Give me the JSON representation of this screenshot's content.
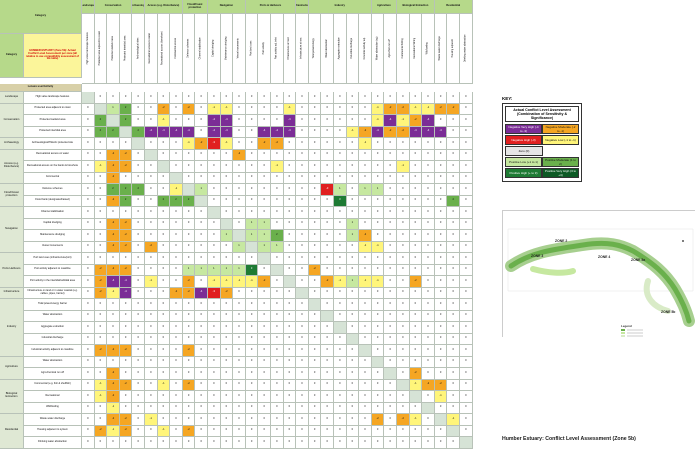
{
  "header": {
    "category_label": "Category",
    "top_categories": [
      "Landscape",
      "Conservation",
      "Archaeology",
      "Access (e.g. Disturbance)",
      "Flood/Coast protection",
      "Navigation",
      "Ports & Harbours",
      "Infrastructure",
      "Industry",
      "Agriculture",
      "Biological Extraction",
      "Residential"
    ],
    "intro": "HUMBER ESTUARY (Zone 5b): Actual Conflict Level Assessment per zone (all relative to use compatibility assessment of the table)"
  },
  "key": {
    "label": "KEY:",
    "heading": "Actual Conflict Level Assessment (Combination of Sensitivity & Significance)",
    "items": [
      {
        "label": "Negative Very High (-4 to -3)",
        "color": "#7b2d96"
      },
      {
        "label": "Negative High (-3)",
        "color": "#e02020"
      },
      {
        "label": "Negative Moderate (-2 to -1)",
        "color": "#f5a623"
      },
      {
        "label": "Negative Low (-1 to -1)",
        "color": "#fff57a"
      },
      {
        "label": "Zero (0)",
        "color": "#e6e6e6"
      },
      {
        "label": "Positive Low (+1 to 1)",
        "color": "#c6e8a0"
      },
      {
        "label": "Positive Moderate (1 to 2)",
        "color": "#6ab04c"
      },
      {
        "label": "Positive High (+ to 3)",
        "color": "#1e7b34"
      },
      {
        "label": "Positive Very High (3 to +4)",
        "color": "#0d5a25"
      }
    ]
  },
  "map": {
    "zone_labels": [
      "ZONE 2",
      "ZONE 3",
      "ZONE 4",
      "ZONE 5a",
      "ZONE 5b"
    ],
    "legend_title": "Legend"
  },
  "footer_title": "Humber Estuary:  Conflict Level Assessment (Zone 5b)",
  "matrix": {
    "subheader_label": "Leisure user/Activity",
    "column_headers": [
      "High value landscape features",
      "Protected area adjacent to coast",
      "Protected wetland area",
      "Protected intertidal area",
      "Archaeological sites",
      "Recreational access to water",
      "Recreational access (foreshore)",
      "Commercial access",
      "Defence schemes",
      "Channel stabilisation",
      "Capital dredging",
      "Maintenance dredging",
      "Vessel movements",
      "Port land uses",
      "Port activity",
      "Port activity adj. inlet",
      "Infrastructure on land",
      "Infrastructure at sea",
      "Tidal power/energy",
      "Water abstraction",
      "Aggregate extraction",
      "Industrial discharge",
      "Industrial activity adj.",
      "Water abstraction (ag)",
      "Agri-chem run-off",
      "Commercial fishing",
      "Recreational fishing",
      "Wildfowling",
      "Waste water discharge",
      "Housing adjacent",
      "Drinking water abstraction"
    ],
    "rows": [
      {
        "cat": "Landscape",
        "sub": "High value landscape features",
        "cells": [
          null,
          0,
          0,
          0,
          0,
          0,
          0,
          0,
          0,
          0,
          0,
          0,
          0,
          0,
          0,
          0,
          0,
          0,
          0,
          0,
          0,
          0,
          0,
          0,
          0,
          0,
          0,
          0,
          0,
          0,
          0
        ]
      },
      {
        "cat": "Conservation",
        "sub": "Protected area adjacent to coast",
        "cells": [
          0,
          null,
          1,
          2,
          0,
          0,
          -2,
          0,
          -2,
          0,
          -1,
          -1,
          0,
          0,
          0,
          0,
          -1,
          0,
          0,
          0,
          0,
          0,
          0,
          -1,
          -2,
          -2,
          -1,
          -1,
          -2,
          -2,
          0
        ]
      },
      {
        "cat": "",
        "sub": "Protected wetland area",
        "cells": [
          0,
          2,
          null,
          2,
          0,
          0,
          -1,
          0,
          0,
          0,
          -4,
          -4,
          0,
          0,
          0,
          0,
          -4,
          0,
          0,
          0,
          0,
          0,
          0,
          -1,
          -4,
          -1,
          -2,
          -4,
          0,
          0,
          0
        ]
      },
      {
        "cat": "",
        "sub": "Protected intertidal area",
        "cells": [
          0,
          2,
          2,
          null,
          2,
          -4,
          -4,
          -4,
          -4,
          0,
          -4,
          -4,
          0,
          0,
          -4,
          -4,
          -4,
          0,
          0,
          0,
          0,
          -1,
          -2,
          -4,
          -2,
          -2,
          -4,
          -4,
          -4,
          0,
          0
        ]
      },
      {
        "cat": "Archaeology",
        "sub": "Archaeological/Historic protected site",
        "cells": [
          0,
          0,
          0,
          0,
          null,
          0,
          0,
          0,
          -1,
          -2,
          -3,
          -1,
          0,
          0,
          -2,
          -2,
          0,
          0,
          0,
          0,
          0,
          0,
          -1,
          0,
          0,
          0,
          0,
          0,
          0,
          0,
          0
        ]
      },
      {
        "cat": "Access (e.g. Disturbance)",
        "sub": "Recreational access on water",
        "cells": [
          0,
          0,
          -2,
          -2,
          0,
          null,
          0,
          0,
          0,
          0,
          0,
          0,
          -2,
          0,
          0,
          0,
          0,
          0,
          0,
          0,
          0,
          0,
          0,
          0,
          0,
          0,
          0,
          0,
          0,
          0,
          0
        ]
      },
      {
        "cat": "",
        "sub": "Recreational access on the banks & foreshore",
        "cells": [
          0,
          -1,
          -2,
          -2,
          0,
          0,
          null,
          0,
          0,
          0,
          0,
          0,
          0,
          0,
          0,
          -1,
          0,
          0,
          0,
          0,
          0,
          0,
          0,
          0,
          0,
          -1,
          0,
          0,
          0,
          0,
          0
        ]
      },
      {
        "cat": "",
        "sub": "Commercial",
        "cells": [
          0,
          0,
          -2,
          0,
          0,
          0,
          0,
          null,
          0,
          0,
          0,
          0,
          0,
          0,
          0,
          0,
          0,
          0,
          0,
          0,
          0,
          0,
          0,
          0,
          0,
          0,
          0,
          0,
          0,
          0,
          0
        ]
      },
      {
        "cat": "Flood/Coast protection",
        "sub": "Defence schemes",
        "cells": [
          0,
          0,
          2,
          2,
          2,
          0,
          0,
          -1,
          null,
          1,
          0,
          0,
          0,
          0,
          0,
          0,
          0,
          0,
          0,
          -3,
          1,
          0,
          1,
          1,
          0,
          0,
          0,
          0,
          0,
          0,
          0
        ]
      },
      {
        "cat": "",
        "sub": "Flood bank (designated/raised)",
        "cells": [
          0,
          0,
          -2,
          2,
          0,
          0,
          2,
          2,
          2,
          null,
          0,
          0,
          0,
          0,
          0,
          0,
          0,
          0,
          0,
          0,
          3,
          0,
          0,
          0,
          0,
          0,
          0,
          0,
          0,
          2,
          0
        ]
      },
      {
        "cat": "Navigation",
        "sub": "Channel stabilisation",
        "cells": [
          0,
          0,
          0,
          0,
          0,
          0,
          0,
          0,
          0,
          0,
          null,
          0,
          0,
          0,
          0,
          0,
          0,
          0,
          0,
          0,
          0,
          0,
          0,
          0,
          0,
          0,
          0,
          0,
          0,
          0,
          0
        ]
      },
      {
        "cat": "",
        "sub": "Capital dredging",
        "cells": [
          0,
          0,
          -2,
          -2,
          0,
          0,
          0,
          0,
          0,
          0,
          0,
          null,
          0,
          1,
          1,
          0,
          0,
          0,
          0,
          0,
          0,
          1,
          0,
          0,
          0,
          0,
          0,
          0,
          0,
          0,
          0
        ]
      },
      {
        "cat": "",
        "sub": "Maintenance dredging",
        "cells": [
          0,
          0,
          -2,
          -2,
          0,
          0,
          0,
          0,
          0,
          0,
          0,
          1,
          null,
          1,
          1,
          2,
          0,
          0,
          0,
          0,
          0,
          1,
          -2,
          0,
          0,
          0,
          0,
          0,
          0,
          0,
          0
        ]
      },
      {
        "cat": "",
        "sub": "Vessel movements",
        "cells": [
          0,
          0,
          -2,
          -2,
          0,
          -2,
          0,
          0,
          0,
          0,
          0,
          0,
          1,
          null,
          1,
          1,
          0,
          0,
          0,
          0,
          0,
          0,
          -1,
          -1,
          0,
          0,
          0,
          0,
          0,
          0,
          0
        ]
      },
      {
        "cat": "Ports Harbours",
        "sub": "Port land uses (infrastructure/port)",
        "cells": [
          0,
          0,
          0,
          0,
          0,
          0,
          0,
          0,
          0,
          0,
          0,
          0,
          0,
          0,
          null,
          0,
          0,
          0,
          0,
          0,
          0,
          0,
          0,
          0,
          0,
          0,
          0,
          0,
          0,
          0,
          0
        ]
      },
      {
        "cat": "",
        "sub": "Port activity adjacent to coastline",
        "cells": [
          0,
          -2,
          -2,
          -2,
          0,
          0,
          0,
          0,
          1,
          1,
          1,
          1,
          1,
          3,
          0,
          null,
          0,
          0,
          -2,
          0,
          0,
          0,
          0,
          0,
          0,
          0,
          0,
          0,
          0,
          0,
          0
        ]
      },
      {
        "cat": "",
        "sub": "Port activity in the intertidal/subtidal area",
        "cells": [
          0,
          -2,
          -4,
          -4,
          0,
          -1,
          0,
          0,
          -2,
          0,
          -1,
          -1,
          -1,
          -1,
          -2,
          0,
          null,
          0,
          0,
          -2,
          -1,
          1,
          -1,
          -1,
          0,
          0,
          -2,
          0,
          0,
          0,
          0
        ]
      },
      {
        "cat": "Infrastructure",
        "sub": "Infrastructure on land or in water coastal (e.g. cables, pipes, barrier)",
        "cells": [
          0,
          -2,
          -1,
          -4,
          0,
          0,
          0,
          -2,
          -2,
          -4,
          -3,
          -2,
          0,
          0,
          0,
          0,
          0,
          null,
          0,
          0,
          0,
          0,
          0,
          0,
          0,
          0,
          0,
          0,
          0,
          0,
          0
        ]
      },
      {
        "cat": "Industry",
        "sub": "Tidal power/energy barrier",
        "cells": [
          0,
          0,
          0,
          0,
          0,
          0,
          0,
          0,
          0,
          0,
          0,
          0,
          0,
          0,
          0,
          0,
          0,
          0,
          null,
          0,
          0,
          0,
          0,
          0,
          0,
          0,
          0,
          0,
          0,
          0,
          0
        ]
      },
      {
        "cat": "",
        "sub": "Water abstraction",
        "cells": [
          0,
          0,
          0,
          0,
          0,
          0,
          0,
          0,
          0,
          0,
          0,
          0,
          0,
          0,
          0,
          0,
          0,
          0,
          0,
          null,
          0,
          0,
          0,
          0,
          0,
          0,
          0,
          0,
          0,
          0,
          0
        ]
      },
      {
        "cat": "",
        "sub": "Aggregate extraction",
        "cells": [
          0,
          0,
          0,
          0,
          0,
          0,
          0,
          0,
          0,
          0,
          0,
          0,
          0,
          0,
          0,
          0,
          0,
          0,
          0,
          0,
          null,
          0,
          0,
          0,
          0,
          0,
          0,
          0,
          0,
          0,
          0
        ]
      },
      {
        "cat": "",
        "sub": "Industrial discharge",
        "cells": [
          0,
          0,
          0,
          0,
          0,
          0,
          0,
          0,
          0,
          0,
          0,
          0,
          0,
          0,
          0,
          0,
          0,
          0,
          0,
          0,
          0,
          null,
          0,
          0,
          0,
          0,
          0,
          0,
          0,
          0,
          0
        ]
      },
      {
        "cat": "",
        "sub": "Industrial activity adjacent to coastline",
        "cells": [
          0,
          -2,
          -2,
          -2,
          0,
          0,
          0,
          0,
          -2,
          0,
          0,
          0,
          0,
          0,
          0,
          0,
          0,
          0,
          0,
          0,
          0,
          0,
          null,
          0,
          0,
          0,
          0,
          0,
          0,
          0,
          0
        ]
      },
      {
        "cat": "Agriculture",
        "sub": "Water abstraction",
        "cells": [
          0,
          0,
          0,
          0,
          0,
          0,
          0,
          0,
          0,
          0,
          0,
          0,
          0,
          0,
          0,
          0,
          0,
          0,
          0,
          0,
          0,
          0,
          0,
          null,
          0,
          0,
          0,
          0,
          0,
          0,
          0
        ]
      },
      {
        "cat": "",
        "sub": "Agri-chemical run off",
        "cells": [
          0,
          0,
          -2,
          0,
          0,
          0,
          0,
          0,
          0,
          0,
          0,
          0,
          0,
          0,
          0,
          0,
          0,
          0,
          0,
          0,
          0,
          0,
          0,
          0,
          null,
          0,
          -2,
          0,
          0,
          0,
          0
        ]
      },
      {
        "cat": "Biological Extraction",
        "sub": "Commercial (e.g. fish & shellfish)",
        "cells": [
          0,
          -1,
          -2,
          -2,
          0,
          0,
          -1,
          0,
          -2,
          0,
          0,
          0,
          0,
          0,
          0,
          0,
          0,
          0,
          0,
          0,
          0,
          0,
          0,
          0,
          0,
          null,
          -1,
          -2,
          -2,
          0,
          0
        ]
      },
      {
        "cat": "",
        "sub": "Recreational",
        "cells": [
          0,
          -1,
          -2,
          0,
          0,
          0,
          0,
          0,
          0,
          0,
          0,
          0,
          0,
          0,
          0,
          0,
          0,
          0,
          0,
          0,
          0,
          0,
          0,
          0,
          0,
          0,
          null,
          0,
          -1,
          0,
          0
        ]
      },
      {
        "cat": "",
        "sub": "Wildfowling",
        "cells": [
          0,
          0,
          -1,
          0,
          0,
          0,
          0,
          0,
          0,
          0,
          0,
          0,
          0,
          0,
          0,
          0,
          0,
          0,
          0,
          0,
          0,
          0,
          0,
          0,
          0,
          0,
          0,
          null,
          0,
          0,
          0
        ]
      },
      {
        "cat": "Residential",
        "sub": "Waste water discharge",
        "cells": [
          0,
          0,
          -2,
          -2,
          0,
          -1,
          0,
          0,
          0,
          0,
          0,
          0,
          0,
          0,
          0,
          0,
          0,
          0,
          0,
          0,
          0,
          0,
          0,
          -2,
          0,
          -2,
          -1,
          0,
          null,
          -1,
          0
        ]
      },
      {
        "cat": "",
        "sub": "Housing adjacent to system",
        "cells": [
          0,
          -2,
          -1,
          -2,
          0,
          0,
          -1,
          0,
          -2,
          0,
          0,
          0,
          0,
          0,
          0,
          0,
          0,
          0,
          0,
          0,
          0,
          0,
          0,
          0,
          0,
          0,
          0,
          0,
          0,
          null,
          0
        ]
      },
      {
        "cat": "",
        "sub": "Drinking water abstraction",
        "cells": [
          0,
          0,
          0,
          0,
          0,
          0,
          0,
          0,
          0,
          0,
          0,
          0,
          0,
          0,
          0,
          0,
          0,
          0,
          0,
          0,
          0,
          0,
          0,
          0,
          0,
          0,
          0,
          0,
          0,
          0,
          null
        ]
      }
    ]
  }
}
